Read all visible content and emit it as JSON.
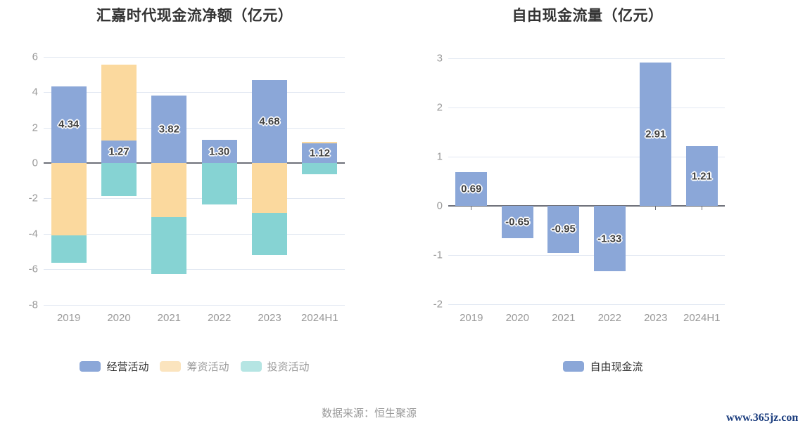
{
  "footer": {
    "source": "数据来源：恒生聚源",
    "watermark": "www.365jz.com"
  },
  "colors": {
    "operating_blue": "#8BA7D8",
    "financing_orange": "#FBD99E",
    "investing_teal": "#86D3D3",
    "grid": "#E2E8F2",
    "axis": "#6E7079",
    "axis_text": "#999999",
    "title_text": "#333333",
    "watermark_blue": "#1B3D7E"
  },
  "chart_data": [
    {
      "type": "bar",
      "stacked": true,
      "title": "汇嘉时代现金流净额（亿元）",
      "categories": [
        "2019",
        "2020",
        "2021",
        "2022",
        "2023",
        "2024H1"
      ],
      "series": [
        {
          "name": "经营活动",
          "color": "#8BA7D8",
          "values": [
            4.34,
            1.27,
            3.82,
            1.3,
            4.68,
            1.12
          ],
          "labels": [
            "4.34",
            "1.27",
            "3.82",
            "1.30",
            "4.68",
            "1.12"
          ]
        },
        {
          "name": "筹资活动",
          "color": "#FBD99E",
          "values": [
            -4.07,
            4.28,
            -3.05,
            0,
            -2.8,
            0.08
          ]
        },
        {
          "name": "投资活动",
          "color": "#86D3D3",
          "values": [
            -1.57,
            -1.86,
            -3.22,
            -2.35,
            -2.38,
            -0.62
          ]
        }
      ],
      "ylim": [
        -8,
        6
      ],
      "yticks": [
        6,
        4,
        2,
        0,
        -2,
        -4,
        -6,
        -8
      ],
      "grid": true,
      "legend_position": "bottom",
      "legend": [
        {
          "label": "经营活动",
          "swatch": "#8BA7D8",
          "text_color": "#333333"
        },
        {
          "label": "筹资活动",
          "swatch": "#FBE4BE",
          "text_color": "#999999"
        },
        {
          "label": "投资活动",
          "swatch": "#B5E5E3",
          "text_color": "#999999"
        }
      ]
    },
    {
      "type": "bar",
      "stacked": false,
      "title": "自由现金流量（亿元）",
      "categories": [
        "2019",
        "2020",
        "2021",
        "2022",
        "2023",
        "2024H1"
      ],
      "series": [
        {
          "name": "自由现金流",
          "color": "#8BA7D8",
          "values": [
            0.69,
            -0.65,
            -0.95,
            -1.33,
            2.91,
            1.21
          ],
          "labels": [
            "0.69",
            "-0.65",
            "-0.95",
            "-1.33",
            "2.91",
            "1.21"
          ]
        }
      ],
      "ylim": [
        -2,
        3
      ],
      "yticks": [
        3,
        2,
        1,
        0,
        -1,
        -2
      ],
      "grid": true,
      "legend_position": "bottom",
      "legend": [
        {
          "label": "自由现金流",
          "swatch": "#8BA7D8",
          "text_color": "#333333"
        }
      ]
    }
  ]
}
